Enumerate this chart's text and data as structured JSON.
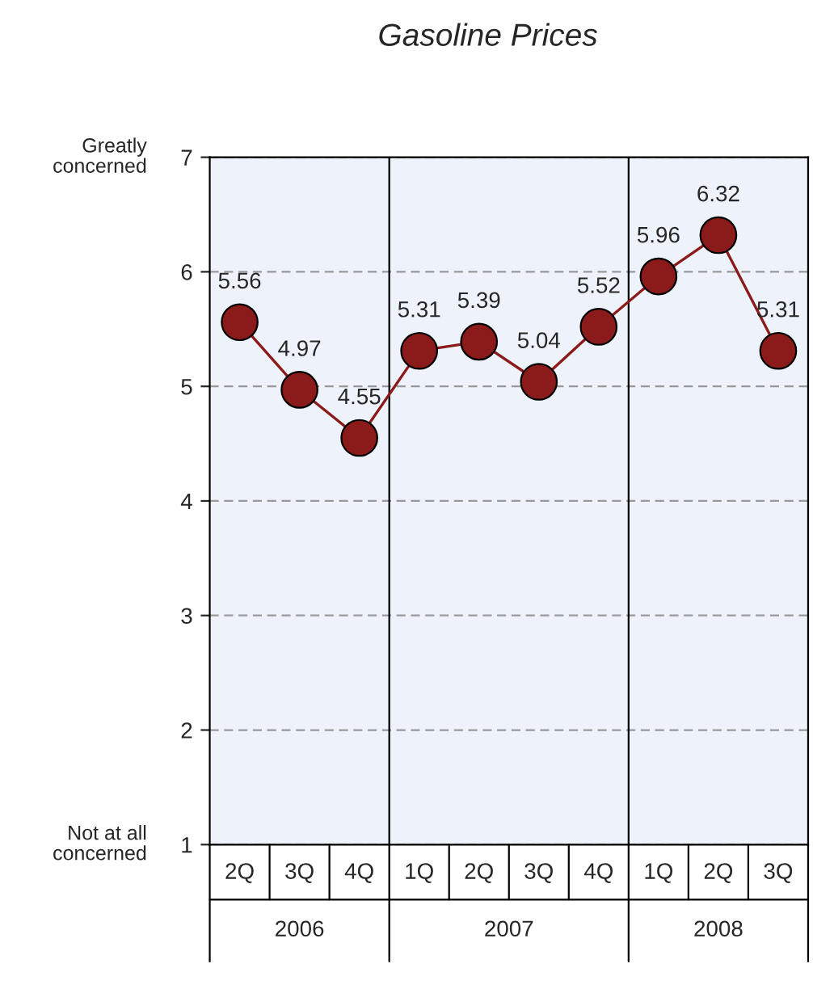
{
  "chart_data": {
    "type": "line",
    "title": "Gasoline Prices",
    "categories": [
      "2Q",
      "3Q",
      "4Q",
      "1Q",
      "2Q",
      "3Q",
      "4Q",
      "1Q",
      "2Q",
      "3Q"
    ],
    "series": [
      {
        "color": "#8b1a1a",
        "values": [
          5.56,
          4.97,
          4.55,
          5.31,
          5.39,
          5.04,
          5.52,
          5.96,
          6.32,
          5.31
        ]
      }
    ],
    "ylim": [
      1,
      7
    ],
    "yticks": [
      1,
      2,
      3,
      4,
      5,
      6,
      7
    ],
    "grid": "y",
    "marker": "circle",
    "line_style": "solid",
    "data_labels": true,
    "legend": false,
    "annotations": [
      "Greatly\nconcerned",
      "Not at all\nconcerned",
      "2006",
      "2007",
      "2008"
    ]
  }
}
